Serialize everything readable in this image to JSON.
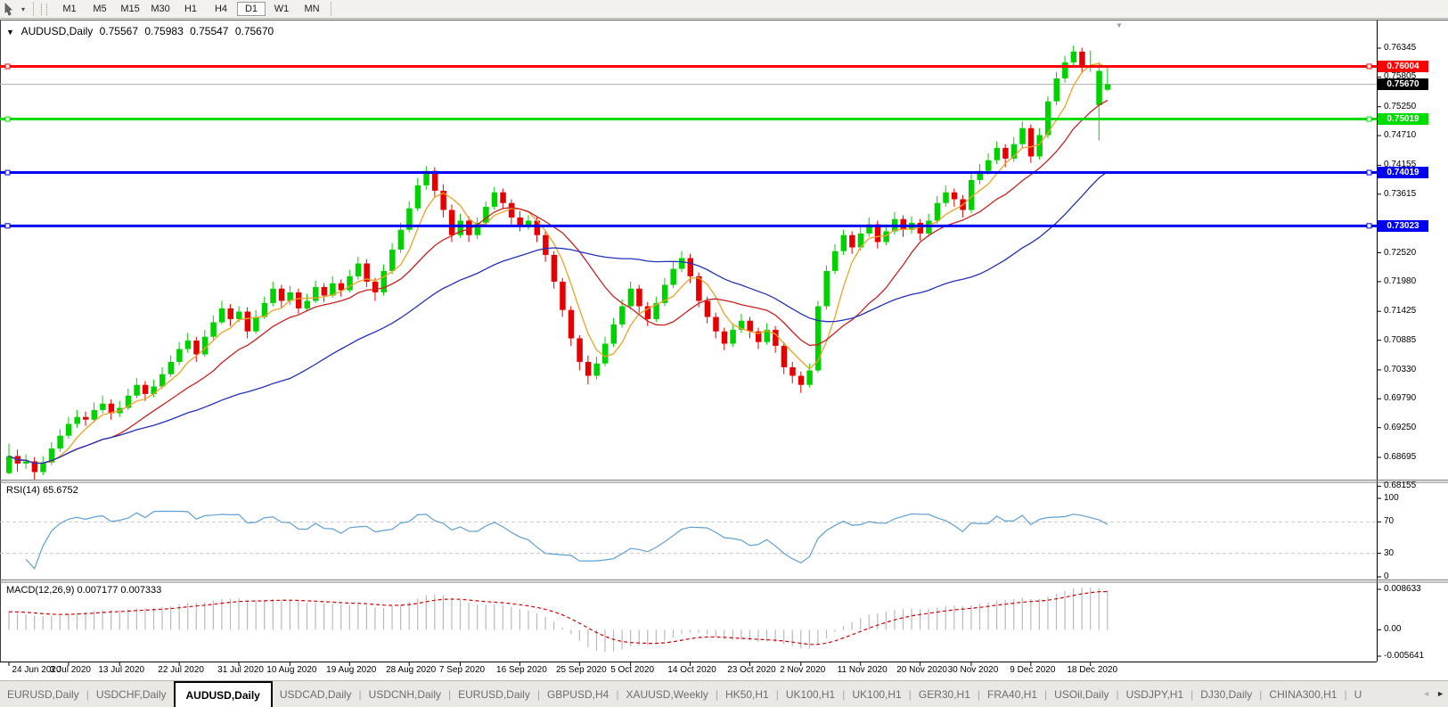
{
  "toolbar": {
    "tool_icon": "crosshair-cursor-icon",
    "dropdown_caret": "▾",
    "timeframes": [
      "M1",
      "M5",
      "M15",
      "M30",
      "H1",
      "H4",
      "D1",
      "W1",
      "MN"
    ],
    "active_timeframe": "D1"
  },
  "chart_header": {
    "collapse_icon": "▼",
    "symbol_period": "AUDUSD,Daily",
    "open": "0.75567",
    "high": "0.75983",
    "low": "0.75547",
    "close": "0.75670"
  },
  "indicators": {
    "rsi_label": "RSI(14) 65.6752",
    "macd_label": "MACD(12,26,9) 0.007177 0.007333"
  },
  "tabs": {
    "items": [
      "EURUSD,Daily",
      "USDCHF,Daily",
      "AUDUSD,Daily",
      "USDCAD,Daily",
      "USDCNH,Daily",
      "EURUSD,Daily",
      "GBPUSD,H4",
      "XAUUSD,Weekly",
      "HK50,H1",
      "UK100,H1",
      "UK100,H1",
      "GER30,H1",
      "FRA40,H1",
      "USOil,Daily",
      "USDJPY,H1",
      "DJ30,Daily",
      "CHINA300,H1",
      "U"
    ],
    "active_index": 2,
    "scroll_left_icon": "◄",
    "scroll_right_icon": "►"
  },
  "chart_data": {
    "type": "candlestick",
    "symbol": "AUDUSD",
    "period": "Daily",
    "title": "AUDUSD,Daily 0.75567 0.75983 0.75547 0.75670",
    "current_bar": {
      "open": 0.75567,
      "high": 0.75983,
      "low": 0.75547,
      "close": 0.7567
    },
    "ylim": [
      0.6796,
      0.7688
    ],
    "y_tick_labels": [
      "0.76345",
      "0.75805",
      "0.75250",
      "0.74710",
      "0.74155",
      "0.73615",
      "0.72520",
      "0.71980",
      "0.71425",
      "0.70885",
      "0.70330",
      "0.69790",
      "0.69250",
      "0.68695",
      "0.68155"
    ],
    "x_tick_labels": [
      "24 Jun 2020",
      "3 Jul 2020",
      "13 Jul 2020",
      "22 Jul 2020",
      "31 Jul 2020",
      "10 Aug 2020",
      "19 Aug 2020",
      "28 Aug 2020",
      "7 Sep 2020",
      "16 Sep 2020",
      "25 Sep 2020",
      "5 Oct 2020",
      "14 Oct 2020",
      "23 Oct 2020",
      "2 Nov 2020",
      "11 Nov 2020",
      "20 Nov 2020",
      "30 Nov 2020",
      "9 Dec 2020",
      "18 Dec 2020"
    ],
    "x_tick_candle_index": [
      0,
      7,
      13,
      20,
      27,
      33,
      40,
      47,
      53,
      60,
      67,
      73,
      80,
      87,
      93,
      100,
      107,
      113,
      120,
      127
    ],
    "up_color": "#00d200",
    "down_color": "#e60000",
    "horizontal_lines": [
      {
        "price": 0.76004,
        "label": "0.76004",
        "color": "#ff0000"
      },
      {
        "price": 0.75019,
        "label": "0.75019",
        "color": "#00dc00"
      },
      {
        "price": 0.74019,
        "label": "0.74019",
        "color": "#0000f0"
      },
      {
        "price": 0.73023,
        "label": "0.73023",
        "color": "#0000f0"
      }
    ],
    "current_price_line": {
      "price": 0.7567,
      "label": "0.75670",
      "line_color": "#b4b4b4",
      "badge_color": "#000000"
    },
    "moving_averages": [
      {
        "period": 5,
        "color": "#efa224"
      },
      {
        "period": 13,
        "color": "#cc2020"
      },
      {
        "period": 34,
        "color": "#2330b8"
      }
    ],
    "rsi": {
      "period": 14,
      "value": 65.6752,
      "color": "#5f9fd2",
      "levels": [
        70,
        30
      ],
      "range": [
        0,
        100
      ],
      "tick_labels": [
        "100",
        "70",
        "30",
        "0"
      ],
      "tick_values": [
        100,
        70,
        30,
        0
      ]
    },
    "macd": {
      "fast": 12,
      "slow": 26,
      "signal": 9,
      "value": 0.007177,
      "signal_value": 0.007333,
      "hist_color": "#b9b9b9",
      "signal_color": "#d40000",
      "range": [
        -0.005641,
        0.008633
      ],
      "tick_labels": [
        "0.008633",
        "0.00",
        "-0.005641"
      ],
      "tick_values": [
        0.008633,
        0,
        -0.005641
      ]
    },
    "candles": [
      [
        0.684,
        0.6895,
        0.6838,
        0.6872
      ],
      [
        0.6872,
        0.6884,
        0.6843,
        0.6858
      ],
      [
        0.6858,
        0.6875,
        0.6848,
        0.6862
      ],
      [
        0.6862,
        0.687,
        0.6828,
        0.6842
      ],
      [
        0.6842,
        0.6872,
        0.6836,
        0.686
      ],
      [
        0.686,
        0.6898,
        0.6855,
        0.6886
      ],
      [
        0.6886,
        0.6922,
        0.688,
        0.691
      ],
      [
        0.691,
        0.6945,
        0.6905,
        0.6932
      ],
      [
        0.6932,
        0.6958,
        0.6925,
        0.6945
      ],
      [
        0.6945,
        0.6955,
        0.6928,
        0.694
      ],
      [
        0.694,
        0.6972,
        0.6935,
        0.6958
      ],
      [
        0.6958,
        0.6985,
        0.6952,
        0.697
      ],
      [
        0.697,
        0.6978,
        0.694,
        0.6952
      ],
      [
        0.6952,
        0.6975,
        0.6945,
        0.6962
      ],
      [
        0.6962,
        0.6998,
        0.6958,
        0.6985
      ],
      [
        0.6985,
        0.7018,
        0.698,
        0.7005
      ],
      [
        0.7005,
        0.7012,
        0.6975,
        0.6988
      ],
      [
        0.6988,
        0.7015,
        0.6982,
        0.7002
      ],
      [
        0.7002,
        0.7038,
        0.6998,
        0.7025
      ],
      [
        0.7025,
        0.706,
        0.702,
        0.7048
      ],
      [
        0.7048,
        0.7085,
        0.7042,
        0.7072
      ],
      [
        0.7072,
        0.7102,
        0.7065,
        0.7088
      ],
      [
        0.7088,
        0.7095,
        0.7048,
        0.7062
      ],
      [
        0.7062,
        0.7108,
        0.7058,
        0.7095
      ],
      [
        0.7095,
        0.7135,
        0.709,
        0.7122
      ],
      [
        0.7122,
        0.7162,
        0.7118,
        0.7148
      ],
      [
        0.7148,
        0.7156,
        0.7115,
        0.7128
      ],
      [
        0.7128,
        0.7152,
        0.7122,
        0.7142
      ],
      [
        0.7142,
        0.715,
        0.7092,
        0.7105
      ],
      [
        0.7105,
        0.7145,
        0.71,
        0.7132
      ],
      [
        0.7132,
        0.717,
        0.7128,
        0.7158
      ],
      [
        0.7158,
        0.7198,
        0.7152,
        0.7185
      ],
      [
        0.7185,
        0.7192,
        0.715,
        0.7162
      ],
      [
        0.7162,
        0.719,
        0.7155,
        0.7178
      ],
      [
        0.7178,
        0.7185,
        0.7138,
        0.7148
      ],
      [
        0.7148,
        0.7175,
        0.7142,
        0.7162
      ],
      [
        0.7162,
        0.72,
        0.7158,
        0.7188
      ],
      [
        0.7188,
        0.7195,
        0.716,
        0.7172
      ],
      [
        0.7172,
        0.7208,
        0.7168,
        0.7195
      ],
      [
        0.7195,
        0.7202,
        0.717,
        0.7182
      ],
      [
        0.7182,
        0.722,
        0.7178,
        0.7208
      ],
      [
        0.7208,
        0.7245,
        0.7202,
        0.7232
      ],
      [
        0.7232,
        0.724,
        0.7188,
        0.7198
      ],
      [
        0.7198,
        0.7205,
        0.7162,
        0.7178
      ],
      [
        0.7178,
        0.723,
        0.7172,
        0.7218
      ],
      [
        0.7218,
        0.727,
        0.7212,
        0.7258
      ],
      [
        0.7258,
        0.7308,
        0.7252,
        0.7295
      ],
      [
        0.7295,
        0.7348,
        0.729,
        0.7335
      ],
      [
        0.7335,
        0.7392,
        0.733,
        0.7378
      ],
      [
        0.7378,
        0.7414,
        0.737,
        0.7405
      ],
      [
        0.7405,
        0.7412,
        0.7355,
        0.7368
      ],
      [
        0.7368,
        0.738,
        0.7318,
        0.7332
      ],
      [
        0.7332,
        0.7342,
        0.7272,
        0.7285
      ],
      [
        0.7285,
        0.7325,
        0.728,
        0.7312
      ],
      [
        0.7312,
        0.732,
        0.7272,
        0.7285
      ],
      [
        0.7285,
        0.7318,
        0.7278,
        0.7308
      ],
      [
        0.7308,
        0.7348,
        0.7302,
        0.7338
      ],
      [
        0.7338,
        0.7375,
        0.7332,
        0.7365
      ],
      [
        0.7365,
        0.7372,
        0.7335,
        0.7345
      ],
      [
        0.7345,
        0.7352,
        0.7305,
        0.7318
      ],
      [
        0.7318,
        0.733,
        0.7292,
        0.7302
      ],
      [
        0.7302,
        0.7322,
        0.7295,
        0.7312
      ],
      [
        0.7312,
        0.7318,
        0.7272,
        0.7285
      ],
      [
        0.7285,
        0.7292,
        0.7235,
        0.7248
      ],
      [
        0.7248,
        0.7255,
        0.7185,
        0.7198
      ],
      [
        0.7198,
        0.7205,
        0.7132,
        0.7145
      ],
      [
        0.7145,
        0.7152,
        0.7078,
        0.7092
      ],
      [
        0.7092,
        0.7098,
        0.7032,
        0.7048
      ],
      [
        0.7048,
        0.706,
        0.7006,
        0.7022
      ],
      [
        0.7022,
        0.7058,
        0.7016,
        0.7045
      ],
      [
        0.7045,
        0.7095,
        0.704,
        0.7082
      ],
      [
        0.7082,
        0.713,
        0.7076,
        0.7118
      ],
      [
        0.7118,
        0.7165,
        0.7112,
        0.7152
      ],
      [
        0.7152,
        0.7198,
        0.7146,
        0.7185
      ],
      [
        0.7185,
        0.7192,
        0.714,
        0.7152
      ],
      [
        0.7152,
        0.716,
        0.7115,
        0.7128
      ],
      [
        0.7128,
        0.717,
        0.7122,
        0.7158
      ],
      [
        0.7158,
        0.7205,
        0.7152,
        0.7192
      ],
      [
        0.7192,
        0.7235,
        0.7186,
        0.7222
      ],
      [
        0.7222,
        0.7255,
        0.7216,
        0.7242
      ],
      [
        0.7242,
        0.725,
        0.7195,
        0.7208
      ],
      [
        0.7208,
        0.7215,
        0.715,
        0.7162
      ],
      [
        0.7162,
        0.717,
        0.712,
        0.7132
      ],
      [
        0.7132,
        0.714,
        0.7092,
        0.7105
      ],
      [
        0.7105,
        0.7112,
        0.707,
        0.7082
      ],
      [
        0.7082,
        0.712,
        0.7076,
        0.7108
      ],
      [
        0.7108,
        0.7138,
        0.7102,
        0.7125
      ],
      [
        0.7125,
        0.7132,
        0.7092,
        0.7105
      ],
      [
        0.7105,
        0.7112,
        0.7072,
        0.7085
      ],
      [
        0.7085,
        0.712,
        0.708,
        0.7108
      ],
      [
        0.7108,
        0.7115,
        0.7065,
        0.7078
      ],
      [
        0.7078,
        0.7085,
        0.7025,
        0.7038
      ],
      [
        0.7038,
        0.7048,
        0.7008,
        0.7022
      ],
      [
        0.7022,
        0.703,
        0.699,
        0.7005
      ],
      [
        0.7005,
        0.7045,
        0.7,
        0.7032
      ],
      [
        0.7032,
        0.7162,
        0.7028,
        0.7152
      ],
      [
        0.7152,
        0.7228,
        0.7146,
        0.7218
      ],
      [
        0.7218,
        0.7268,
        0.7212,
        0.7255
      ],
      [
        0.7255,
        0.7295,
        0.7248,
        0.7285
      ],
      [
        0.7285,
        0.7292,
        0.725,
        0.7262
      ],
      [
        0.7262,
        0.73,
        0.7256,
        0.7288
      ],
      [
        0.7288,
        0.7318,
        0.7282,
        0.7305
      ],
      [
        0.7305,
        0.7312,
        0.726,
        0.7272
      ],
      [
        0.7272,
        0.7305,
        0.7266,
        0.7292
      ],
      [
        0.7292,
        0.7328,
        0.7286,
        0.7315
      ],
      [
        0.7315,
        0.7322,
        0.7282,
        0.7295
      ],
      [
        0.7295,
        0.732,
        0.7288,
        0.7308
      ],
      [
        0.7308,
        0.7315,
        0.7275,
        0.7288
      ],
      [
        0.7288,
        0.7325,
        0.7282,
        0.7312
      ],
      [
        0.7312,
        0.7358,
        0.7306,
        0.7345
      ],
      [
        0.7345,
        0.7378,
        0.7338,
        0.7365
      ],
      [
        0.7365,
        0.7372,
        0.7338,
        0.7352
      ],
      [
        0.7352,
        0.736,
        0.7318,
        0.7332
      ],
      [
        0.7332,
        0.74,
        0.7326,
        0.7388
      ],
      [
        0.7388,
        0.7418,
        0.738,
        0.7405
      ],
      [
        0.7405,
        0.7438,
        0.7398,
        0.7425
      ],
      [
        0.7425,
        0.746,
        0.7418,
        0.7448
      ],
      [
        0.7448,
        0.7455,
        0.7412,
        0.7428
      ],
      [
        0.7428,
        0.7468,
        0.7422,
        0.7455
      ],
      [
        0.7455,
        0.7498,
        0.7448,
        0.7485
      ],
      [
        0.7485,
        0.7492,
        0.742,
        0.7432
      ],
      [
        0.7432,
        0.7485,
        0.7426,
        0.7472
      ],
      [
        0.7472,
        0.7545,
        0.7466,
        0.7535
      ],
      [
        0.7535,
        0.759,
        0.7528,
        0.7578
      ],
      [
        0.7578,
        0.762,
        0.757,
        0.7608
      ],
      [
        0.7608,
        0.7639,
        0.76,
        0.7628
      ],
      [
        0.7628,
        0.7635,
        0.7588,
        0.7598
      ],
      [
        0.7598,
        0.763,
        0.759,
        0.7602
      ],
      [
        0.7528,
        0.7608,
        0.7462,
        0.7592
      ],
      [
        0.75567,
        0.75983,
        0.75547,
        0.7567
      ]
    ]
  }
}
